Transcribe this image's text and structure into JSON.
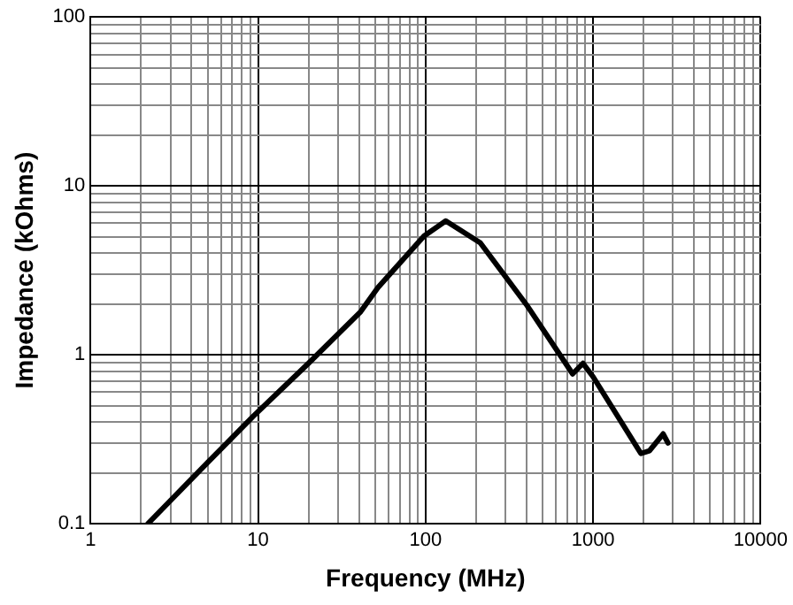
{
  "chart_data": {
    "type": "line",
    "xlabel": "Frequency (MHz)",
    "ylabel": "Impedance (kOhms)",
    "log": "xy",
    "grid": true,
    "legend": false,
    "marker": "none",
    "line_style": "solid",
    "xlim": [
      1,
      10000
    ],
    "ylim": [
      0.1,
      100
    ],
    "xticks": [
      1,
      {
        "value": 2,
        "label": null
      },
      {
        "value": 3,
        "label": null
      },
      {
        "value": 4,
        "label": null
      },
      {
        "value": 5,
        "label": null
      },
      {
        "value": 6,
        "label": null
      },
      {
        "value": 7,
        "label": null
      },
      {
        "value": 8,
        "label": null
      },
      {
        "value": 9,
        "label": null
      },
      10,
      {
        "value": 20,
        "label": null
      },
      {
        "value": 30,
        "label": null
      },
      {
        "value": 40,
        "label": null
      },
      {
        "value": 50,
        "label": null
      },
      {
        "value": 60,
        "label": null
      },
      {
        "value": 70,
        "label": null
      },
      {
        "value": 80,
        "label": null
      },
      {
        "value": 90,
        "label": null
      },
      100,
      {
        "value": 200,
        "label": null
      },
      {
        "value": 300,
        "label": null
      },
      {
        "value": 400,
        "label": null
      },
      {
        "value": 500,
        "label": null
      },
      {
        "value": 600,
        "label": null
      },
      {
        "value": 700,
        "label": null
      },
      {
        "value": 800,
        "label": null
      },
      {
        "value": 900,
        "label": null
      },
      1000,
      {
        "value": 2000,
        "label": null
      },
      {
        "value": 3000,
        "label": null
      },
      {
        "value": 4000,
        "label": null
      },
      {
        "value": 5000,
        "label": null
      },
      {
        "value": 6000,
        "label": null
      },
      {
        "value": 7000,
        "label": null
      },
      {
        "value": 8000,
        "label": null
      },
      {
        "value": 9000,
        "label": null
      },
      10000
    ],
    "yticks": [
      0.1,
      {
        "value": 0.2,
        "label": null
      },
      {
        "value": 0.3,
        "label": null
      },
      {
        "value": 0.4,
        "label": null
      },
      {
        "value": 0.5,
        "label": null
      },
      {
        "value": 0.6,
        "label": null
      },
      {
        "value": 0.7,
        "label": null
      },
      {
        "value": 0.8,
        "label": null
      },
      {
        "value": 0.9,
        "label": null
      },
      1,
      {
        "value": 2,
        "label": null
      },
      {
        "value": 3,
        "label": null
      },
      {
        "value": 4,
        "label": null
      },
      {
        "value": 5,
        "label": null
      },
      {
        "value": 6,
        "label": null
      },
      {
        "value": 7,
        "label": null
      },
      {
        "value": 8,
        "label": null
      },
      {
        "value": 9,
        "label": null
      },
      10,
      {
        "value": 20,
        "label": null
      },
      {
        "value": 30,
        "label": null
      },
      {
        "value": 40,
        "label": null
      },
      {
        "value": 50,
        "label": null
      },
      {
        "value": 60,
        "label": null
      },
      {
        "value": 70,
        "label": null
      },
      {
        "value": 80,
        "label": null
      },
      {
        "value": 90,
        "label": null
      },
      100
    ],
    "series": [
      {
        "color": "#000000",
        "x": [
          2.2,
          5,
          9.3,
          20,
          41,
          52,
          98,
          132,
          212,
          400,
          755,
          870,
          1000,
          1930,
          2170,
          2620,
          2800
        ],
        "values": [
          0.1,
          0.23,
          0.43,
          0.89,
          1.8,
          2.5,
          5.05,
          6.2,
          4.6,
          1.98,
          0.77,
          0.89,
          0.74,
          0.26,
          0.27,
          0.34,
          0.3
        ]
      }
    ]
  }
}
